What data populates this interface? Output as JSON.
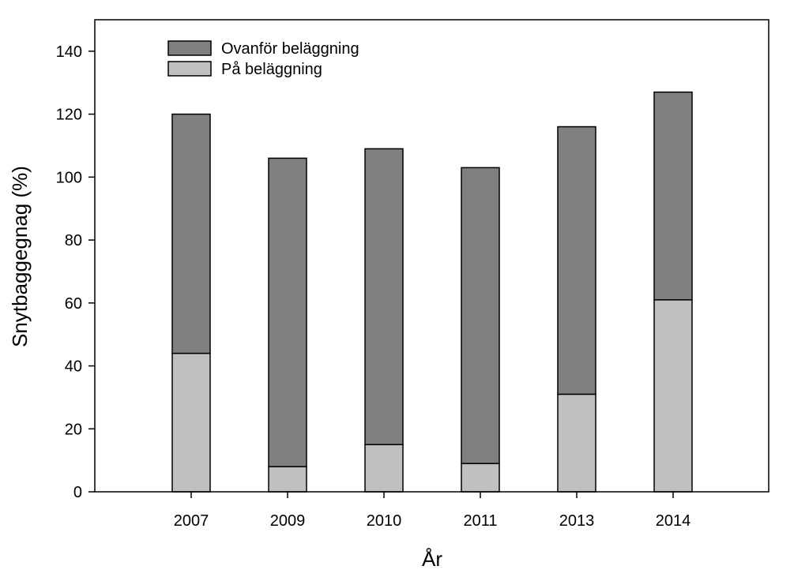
{
  "chart_data": {
    "type": "bar",
    "stacked": true,
    "title": "",
    "xlabel": "År",
    "ylabel": "Snytbaggegnag (%)",
    "categories": [
      "2007",
      "2009",
      "2010",
      "2011",
      "2013",
      "2014"
    ],
    "ylim": [
      0,
      150
    ],
    "yticks": [
      0,
      20,
      40,
      60,
      80,
      100,
      120,
      140
    ],
    "grid": false,
    "legend_position": "top-left",
    "series": [
      {
        "name": "På beläggning",
        "values": [
          44,
          8,
          15,
          9,
          31,
          61
        ],
        "color": "#c0c0c0"
      },
      {
        "name": "Ovanför beläggning",
        "values": [
          76,
          98,
          94,
          94,
          85,
          66
        ],
        "color": "#808080"
      }
    ]
  }
}
